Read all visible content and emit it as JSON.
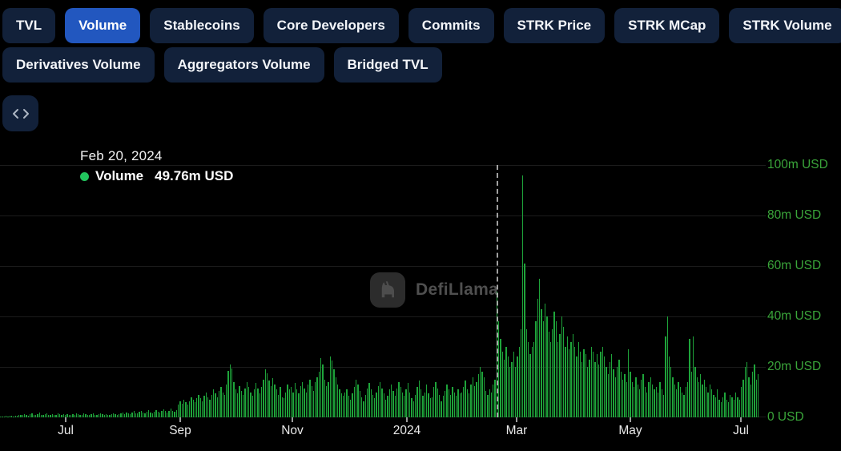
{
  "tabs": {
    "row1": [
      {
        "label": "TVL",
        "active": false
      },
      {
        "label": "Volume",
        "active": true
      },
      {
        "label": "Stablecoins",
        "active": false
      },
      {
        "label": "Core Developers",
        "active": false
      },
      {
        "label": "Commits",
        "active": false
      },
      {
        "label": "STRK Price",
        "active": false
      },
      {
        "label": "STRK MCap",
        "active": false
      },
      {
        "label": "STRK Volume",
        "active": false
      }
    ],
    "row2": [
      {
        "label": "Derivatives Volume",
        "active": false
      },
      {
        "label": "Aggregators Volume",
        "active": false
      },
      {
        "label": "Bridged TVL",
        "active": false
      }
    ]
  },
  "tooltip": {
    "date": "Feb 20, 2024",
    "series": "Volume",
    "value": "49.76m USD"
  },
  "watermark": {
    "text": "DefiLlama"
  },
  "colors": {
    "background": "#000000",
    "tab_inactive": "#12213a",
    "tab_active": "#2257bf",
    "bar_green": "#1ea43a",
    "axis_label_green": "#3aa53a",
    "tooltip_dot_green": "#22c55e",
    "x_label": "#e9e9e9"
  },
  "chart_data": {
    "type": "bar",
    "title": "",
    "series_name": "Volume",
    "unit": "m USD",
    "ylim": [
      0,
      100
    ],
    "grid": true,
    "legend_position": "tooltip-top-left",
    "y_ticks": [
      "100m USD",
      "80m USD",
      "60m USD",
      "40m USD",
      "20m USD",
      "0 USD"
    ],
    "x_ticks": [
      {
        "label": "Jul",
        "pos": 0.0866
      },
      {
        "label": "Sep",
        "pos": 0.2376
      },
      {
        "label": "Nov",
        "pos": 0.3854
      },
      {
        "label": "2024",
        "pos": 0.5364
      },
      {
        "label": "Mar",
        "pos": 0.6811
      },
      {
        "label": "May",
        "pos": 0.831
      },
      {
        "label": "Jul",
        "pos": 0.9768
      }
    ],
    "x_range": "Jun 2023 - Jul 2024",
    "highlight_index": 268,
    "highlight_date": "Feb 20, 2024",
    "highlight_value": 49.76,
    "values": [
      0.3,
      0.4,
      0.3,
      0.5,
      0.4,
      0.6,
      0.5,
      0.4,
      0.6,
      0.5,
      0.8,
      1.1,
      0.9,
      1.4,
      1.0,
      0.7,
      1.2,
      1.6,
      1.0,
      0.8,
      1.3,
      1.8,
      1.1,
      0.9,
      1.2,
      1.5,
      0.9,
      1.1,
      1.4,
      0.8,
      1.0,
      1.7,
      1.2,
      1.0,
      1.2,
      0.9,
      1.4,
      1.1,
      0.8,
      1.3,
      1.0,
      1.5,
      1.2,
      0.9,
      1.1,
      1.6,
      1.3,
      1.0,
      0.8,
      1.2,
      1.5,
      1.1,
      0.9,
      1.3,
      1.7,
      1.2,
      1.0,
      1.4,
      1.1,
      0.9,
      1.2,
      1.6,
      1.3,
      1.0,
      1.2,
      1.5,
      1.8,
      1.4,
      2.0,
      1.6,
      1.3,
      1.9,
      2.4,
      1.7,
      1.5,
      2.1,
      2.6,
      1.9,
      1.6,
      2.2,
      2.8,
      2.0,
      1.7,
      2.3,
      3.0,
      2.2,
      1.8,
      2.5,
      3.2,
      2.4,
      2.0,
      2.7,
      3.5,
      2.6,
      2.2,
      2.9,
      5.0,
      6.5,
      5.5,
      7.0,
      6.0,
      5.0,
      6.5,
      8.0,
      7.0,
      6.0,
      7.5,
      9.0,
      7.5,
      6.5,
      8.5,
      10.0,
      8.0,
      7.0,
      9.0,
      11.0,
      9.5,
      8.0,
      10.5,
      12.0,
      10.0,
      9.0,
      13.0,
      18.5,
      21.0,
      19.5,
      14.0,
      11.0,
      9.5,
      12.5,
      10.5,
      9.0,
      11.5,
      14.0,
      12.0,
      10.0,
      8.5,
      11.0,
      13.5,
      11.5,
      9.5,
      12.0,
      15.0,
      19.0,
      17.5,
      14.5,
      12.5,
      15.5,
      13.0,
      11.0,
      9.0,
      12.0,
      8.0,
      7.5,
      10.0,
      13.0,
      11.0,
      12.0,
      10.0,
      13.5,
      11.0,
      9.5,
      12.5,
      14.0,
      11.5,
      10.0,
      13.0,
      15.0,
      12.5,
      10.5,
      14.0,
      16.0,
      18.0,
      23.5,
      21.0,
      15.0,
      12.5,
      14.0,
      24.0,
      22.5,
      19.0,
      16.0,
      13.0,
      11.0,
      9.5,
      8.5,
      10.0,
      11.0,
      8.5,
      7.0,
      9.5,
      12.0,
      15.0,
      13.0,
      10.5,
      8.0,
      6.5,
      9.0,
      11.5,
      13.5,
      11.0,
      9.0,
      7.5,
      10.0,
      12.5,
      14.0,
      11.5,
      9.5,
      7.0,
      8.5,
      11.0,
      13.0,
      10.5,
      8.5,
      11.5,
      14.0,
      12.0,
      10.0,
      8.5,
      11.0,
      13.5,
      10.0,
      7.5,
      6.5,
      9.0,
      12.0,
      14.5,
      11.0,
      8.5,
      10.0,
      13.0,
      9.5,
      7.5,
      8.0,
      12.0,
      14.0,
      11.5,
      9.0,
      6.5,
      8.5,
      10.5,
      13.0,
      11.0,
      9.0,
      12.0,
      10.0,
      8.5,
      11.0,
      9.5,
      10.0,
      12.0,
      14.5,
      11.0,
      9.5,
      13.0,
      16.0,
      12.5,
      14.0,
      17.0,
      20.0,
      18.0,
      16.0,
      10.5,
      9.0,
      11.0,
      10.0,
      13.0,
      15.0,
      49.76,
      38.0,
      31.0,
      26.0,
      23.0,
      28.0,
      24.0,
      20.0,
      22.0,
      26.0,
      20.0,
      24.0,
      28.0,
      35.0,
      96.0,
      61.0,
      35.0,
      30.0,
      25.0,
      28.0,
      30.0,
      38.0,
      47.0,
      55.0,
      43.0,
      38.0,
      45.0,
      40.0,
      34.0,
      30.0,
      35.0,
      42.0,
      38.0,
      30.0,
      33.0,
      40.0,
      36.0,
      28.0,
      32.0,
      27.0,
      30.0,
      33.0,
      28.0,
      24.0,
      30.0,
      26.0,
      22.0,
      27.0,
      25.0,
      20.0,
      23.0,
      28.0,
      26.0,
      22.0,
      25.0,
      21.0,
      26.0,
      28.0,
      24.0,
      20.0,
      17.0,
      22.0,
      25.0,
      19.0,
      16.0,
      20.0,
      23.0,
      18.0,
      15.0,
      17.0,
      14.0,
      27.0,
      18.0,
      14.0,
      12.0,
      16.0,
      13.0,
      11.0,
      15.0,
      17.0,
      12.0,
      10.0,
      14.0,
      16.0,
      13.0,
      11.0,
      12.0,
      10.0,
      14.0,
      11.0,
      9.0,
      32.0,
      40.0,
      24.0,
      20.0,
      16.0,
      13.0,
      11.0,
      14.0,
      12.0,
      10.0,
      9.0,
      12.0,
      14.0,
      31.0,
      18.0,
      32.0,
      20.0,
      16.0,
      14.0,
      17.0,
      13.0,
      15.0,
      12.0,
      10.0,
      13.0,
      11.0,
      9.0,
      8.0,
      11.0,
      7.0,
      6.0,
      8.0,
      10.0,
      7.0,
      6.0,
      9.0,
      8.0,
      7.0,
      10.0,
      8.0,
      7.0,
      12.0,
      15.0,
      20.0,
      22.0,
      16.0,
      13.0,
      18.0,
      21.0,
      15.0,
      17.0
    ]
  }
}
